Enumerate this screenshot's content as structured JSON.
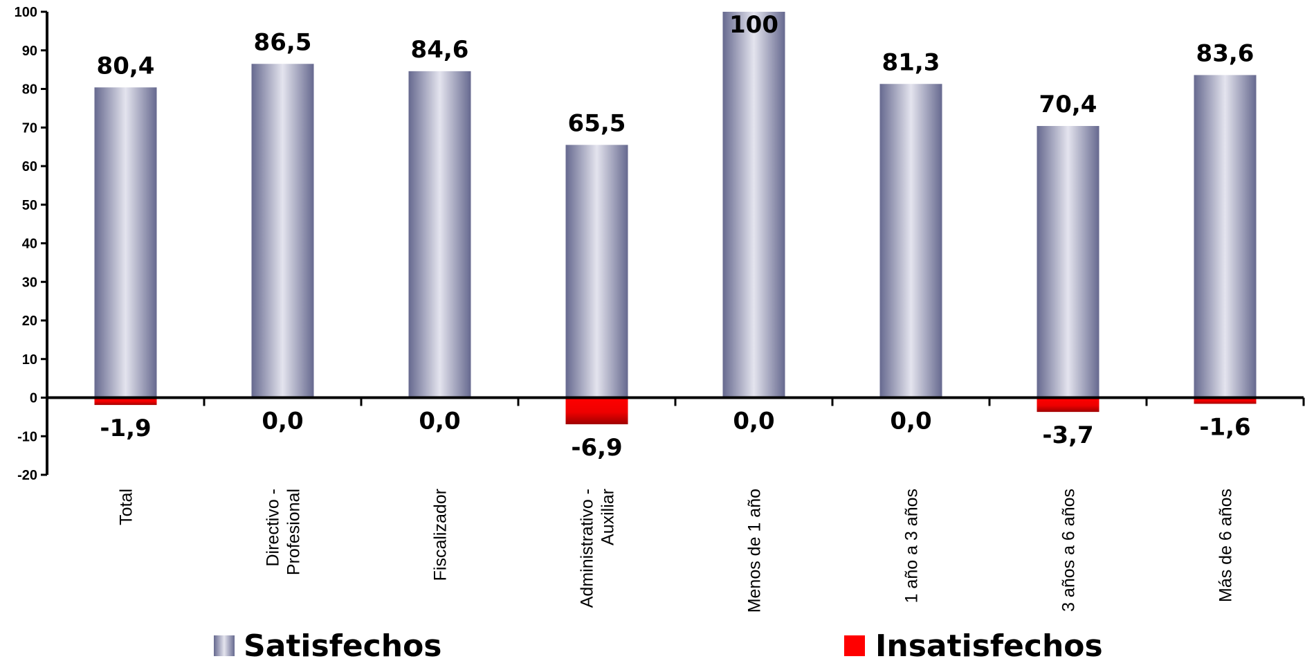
{
  "chart_data": {
    "type": "bar",
    "categories": [
      [
        "Total"
      ],
      [
        "Directivo -",
        "Profesional"
      ],
      [
        "Fiscalizador"
      ],
      [
        "Administrativo -",
        "Auxiliar"
      ],
      [
        "Menos de 1 año"
      ],
      [
        "1 año a 3 años"
      ],
      [
        "3 años a 6 años"
      ],
      [
        "Más de 6 años"
      ]
    ],
    "series": [
      {
        "name": "Satisfechos",
        "values": [
          80.4,
          86.5,
          84.6,
          65.5,
          100,
          81.3,
          70.4,
          83.6
        ],
        "labels": [
          "80,4",
          "86,5",
          "84,6",
          "65,5",
          "100",
          "81,3",
          "70,4",
          "83,6"
        ],
        "color": "#6b6f9e"
      },
      {
        "name": "Insatisfechos",
        "values": [
          -1.9,
          0.0,
          0.0,
          -6.9,
          0.0,
          0.0,
          -3.7,
          -1.6
        ],
        "labels": [
          "-1,9",
          "0,0",
          "0,0",
          "-6,9",
          "0,0",
          "0,0",
          "-3,7",
          "-1,6"
        ],
        "color": "#ff0000"
      }
    ],
    "ylim": [
      -20,
      100
    ],
    "yticks": [
      -20,
      -10,
      0,
      10,
      20,
      30,
      40,
      50,
      60,
      70,
      80,
      90,
      100
    ],
    "title": "",
    "xlabel": "",
    "ylabel": "",
    "grid": false,
    "legend_position": "bottom"
  }
}
